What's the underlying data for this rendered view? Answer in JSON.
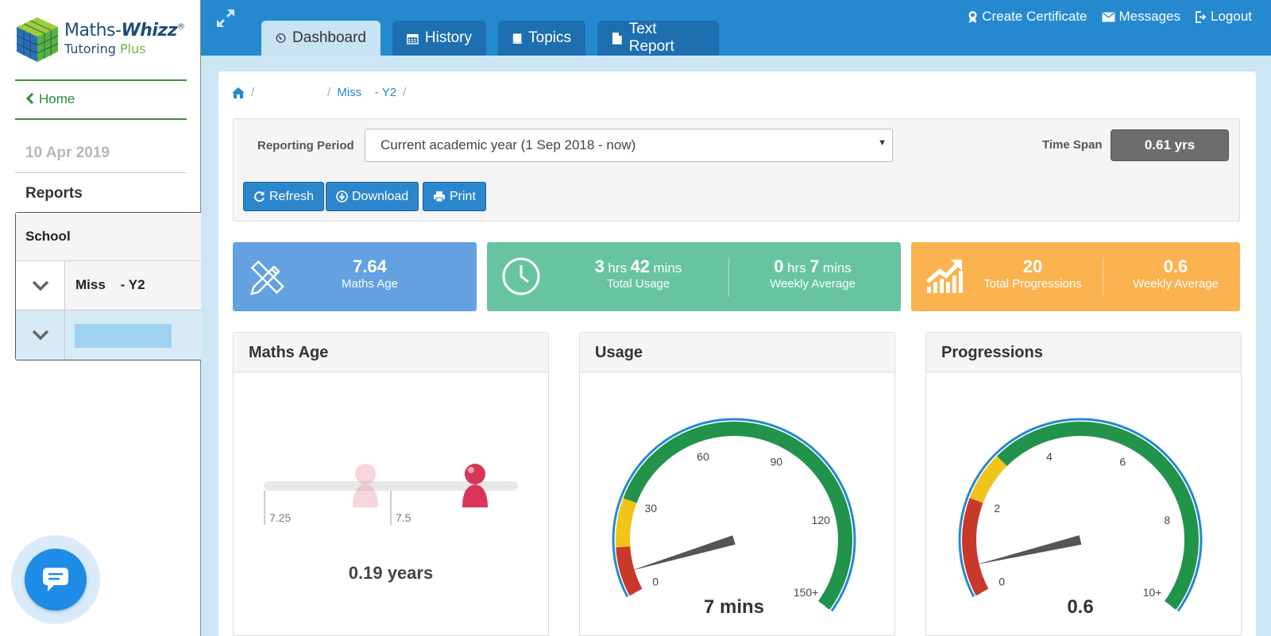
{
  "sidebar": {
    "logo_brand_a": "Maths-",
    "logo_brand_b": "Whizz",
    "logo_reg": "®",
    "logo_sub_a": "Tutoring ",
    "logo_sub_b": "Plus",
    "home_label": "Home",
    "date": "10 Apr 2019",
    "reports_title": "Reports",
    "tree": {
      "school_label": "School",
      "class_label": "Miss    - Y2"
    }
  },
  "tabs": [
    {
      "label": "Dashboard",
      "icon": "dashboard-icon"
    },
    {
      "label": "History",
      "icon": "calendar-icon"
    },
    {
      "label": "Topics",
      "icon": "book-icon"
    },
    {
      "label": "Text Report",
      "icon": "file-icon"
    }
  ],
  "top_links": {
    "certificate": "Create Certificate",
    "messages": "Messages",
    "logout": "Logout"
  },
  "breadcrumb": {
    "sep": "/",
    "class": "Miss    - Y2"
  },
  "filters": {
    "period_label": "Reporting Period",
    "period_value": "Current academic year (1 Sep 2018 - now)",
    "timespan_label": "Time Span",
    "timespan_value": "0.61 yrs",
    "refresh": "Refresh",
    "download": "Download",
    "print": "Print"
  },
  "stats": {
    "maths_age": {
      "value": "7.64",
      "label": "Maths Age",
      "color": "#63a1e0"
    },
    "usage": {
      "color": "#67c4a0",
      "total_hrs": "3",
      "total_mins": "42",
      "total_label": "Total Usage",
      "weekly_hrs": "0",
      "weekly_mins": "7",
      "weekly_label": "Weekly Average",
      "hrs_unit": "hrs",
      "mins_unit": "mins"
    },
    "progressions": {
      "color": "#fbb34f",
      "total": "20",
      "total_label": "Total Progressions",
      "weekly": "0.6",
      "weekly_label": "Weekly Average"
    }
  },
  "cards": {
    "maths_age": {
      "title": "Maths Age",
      "ticks": [
        "7.25",
        "7.5"
      ],
      "caption": "0.19 years"
    },
    "usage": {
      "title": "Usage",
      "ticks": [
        "0",
        "30",
        "60",
        "90",
        "120",
        "150+"
      ],
      "value": 7,
      "max": 150,
      "caption": "7 mins"
    },
    "progressions": {
      "title": "Progressions",
      "ticks": [
        "0",
        "2",
        "4",
        "6",
        "8",
        "10+"
      ],
      "value": 0.6,
      "max": 10,
      "caption": "0.6"
    }
  },
  "colors": {
    "topbar": "#2589d0",
    "gauge_red": "#c9392b",
    "gauge_yellow": "#f0c419",
    "gauge_green": "#21934a",
    "gauge_rim": "#2589d0"
  }
}
